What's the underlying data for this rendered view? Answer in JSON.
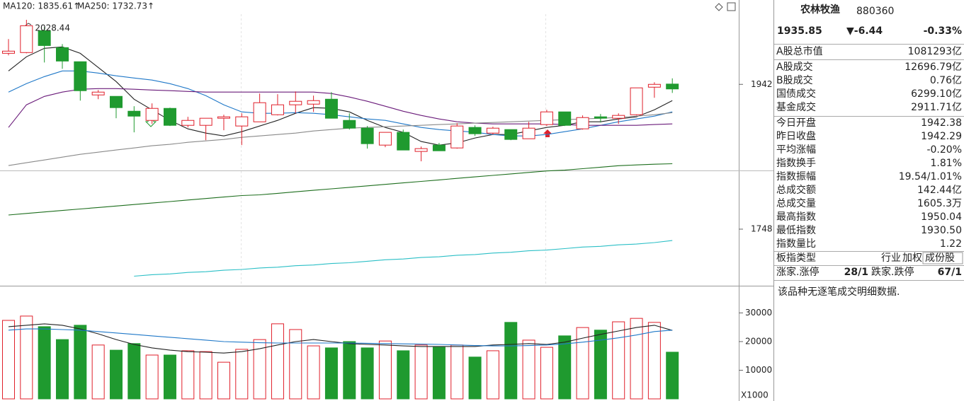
{
  "chart_data": [
    {
      "type": "candlestick",
      "up_color": "#e0202b",
      "down_color": "#1f9a2f",
      "open": [
        1983.6,
        1984.6,
        2013.9,
        1991.2,
        1972.3,
        1927.8,
        1925.9,
        1906.0,
        1893.7,
        1909.8,
        1887.1,
        1887.1,
        1896.6,
        1886.2,
        1891.8,
        1901.3,
        1914.6,
        1915.5,
        1922.1,
        1893.7,
        1883.3,
        1860.6,
        1877.7,
        1852.1,
        1860.6,
        1856.8,
        1884.3,
        1876.7,
        1881.4,
        1869.1,
        1888.1,
        1905.1,
        1882.4,
        1898.5,
        1896.6,
        1901.3,
        1938.2,
        1942.38
      ],
      "high": [
        2002.6,
        2028.44,
        2018.7,
        1995.9,
        1972.3,
        1934.4,
        1925.9,
        1912.7,
        1916.5,
        1910.8,
        1898.5,
        1896.6,
        1901.3,
        1903.2,
        1929.7,
        1928.8,
        1932.5,
        1926.9,
        1931.6,
        1903.2,
        1886.2,
        1877.7,
        1881.4,
        1858.7,
        1863.5,
        1890.0,
        1887.1,
        1885.2,
        1881.4,
        1891.8,
        1907.9,
        1905.1,
        1900.4,
        1902.3,
        1903.2,
        1937.3,
        1944.8,
        1950.04
      ],
      "low": [
        1980.8,
        1983.6,
        1971.3,
        1962.8,
        1920.2,
        1922.1,
        1896.6,
        1877.7,
        1889.0,
        1886.2,
        1884.3,
        1867.2,
        1880.5,
        1860.6,
        1891.8,
        1900.4,
        1903.2,
        1905.1,
        1896.6,
        1881.4,
        1855.9,
        1857.8,
        1854.0,
        1838.9,
        1853.0,
        1855.9,
        1872.9,
        1874.8,
        1867.2,
        1869.1,
        1886.2,
        1886.2,
        1881.4,
        1890.9,
        1889.0,
        1900.4,
        1924.0,
        1930.5
      ],
      "close": [
        1986.5,
        2020.5,
        1994.0,
        1973.2,
        1933.5,
        1931.6,
        1910.8,
        1899.4,
        1909.8,
        1887.1,
        1893.7,
        1896.6,
        1898.5,
        1898.5,
        1917.4,
        1914.6,
        1919.3,
        1920.2,
        1896.6,
        1883.3,
        1862.5,
        1877.7,
        1854.0,
        1855.9,
        1853.0,
        1886.2,
        1875.8,
        1883.3,
        1868.2,
        1883.3,
        1905.1,
        1887.1,
        1897.5,
        1896.6,
        1900.4,
        1937.3,
        1942.0,
        1935.85
      ],
      "series": [
        {
          "name": "MA120: 1835.61↑",
          "color": "#1d6e1d",
          "values": [
            1767,
            1769,
            1771,
            1773,
            1775,
            1777,
            1779,
            1781,
            1783,
            1785,
            1787,
            1789,
            1791,
            1793,
            1794,
            1796,
            1798,
            1800,
            1802,
            1804,
            1806,
            1808,
            1810,
            1812,
            1814,
            1816,
            1818,
            1820,
            1822,
            1824,
            1826,
            1827,
            1829,
            1831,
            1833,
            1834,
            1835,
            1835.61
          ]
        },
        {
          "name": "MA250: 1732.73↑",
          "color": "#2bbfc6",
          "values": [
            null,
            null,
            null,
            null,
            null,
            null,
            null,
            1685,
            1687,
            1688,
            1690,
            1691,
            1693,
            1694,
            1696,
            1697,
            1699,
            1700,
            1702,
            1703,
            1705,
            1707,
            1708,
            1710,
            1711,
            1713,
            1714,
            1716,
            1717,
            1719,
            1720,
            1722,
            1724,
            1725,
            1727,
            1728,
            1730,
            1732.73
          ]
        },
        {
          "color": "#222222",
          "values": [
            1960.0,
            1978.9,
            1990.3,
            1992.2,
            1983.6,
            1964.7,
            1945.8,
            1922.1,
            1907.9,
            1893.7,
            1882.4,
            1876.7,
            1872.9,
            1878.6,
            1886.2,
            1893.7,
            1903.2,
            1910.8,
            1909.8,
            1905.1,
            1893.7,
            1884.3,
            1877.7,
            1865.4,
            1860.6,
            1863.5,
            1870.1,
            1874.8,
            1874.8,
            1879.6,
            1884.3,
            1887.1,
            1891.8,
            1891.8,
            1895.6,
            1898.5,
            1907.9,
            1920.2
          ]
        },
        {
          "color": "#1f78c8",
          "values": [
            1931.6,
            1942.9,
            1952.4,
            1960.0,
            1960.0,
            1957.1,
            1953.4,
            1950.5,
            1947.7,
            1942.9,
            1936.3,
            1926.9,
            1914.6,
            1905.1,
            1903.2,
            1903.2,
            1904.1,
            1903.2,
            1901.3,
            1898.5,
            1895.6,
            1893.7,
            1889.0,
            1884.3,
            1881.4,
            1879.6,
            1877.7,
            1874.8,
            1872.9,
            1872.9,
            1874.8,
            1878.6,
            1882.4,
            1887.1,
            1891.8,
            1895.6,
            1899.4,
            1905.1
          ]
        },
        {
          "color": "#6a1b7a",
          "values": [
            1884.3,
            1914.6,
            1925.9,
            1931.6,
            1935.4,
            1936.3,
            1936.3,
            1935.4,
            1934.4,
            1933.5,
            1932.5,
            1931.6,
            1931.6,
            1931.6,
            1931.6,
            1931.6,
            1931.6,
            1931.6,
            1929.7,
            1925.0,
            1919.3,
            1912.7,
            1906.0,
            1900.4,
            1895.6,
            1891.8,
            1890.0,
            1889.0,
            1889.0,
            1889.0,
            1889.0,
            1888.1,
            1887.1,
            1887.1,
            1887.1,
            1887.1,
            1888.1,
            1889.0
          ]
        },
        {
          "color": "#8a8a8a",
          "values": [
            1833.2,
            1837.0,
            1840.7,
            1844.5,
            1848.3,
            1851.1,
            1854.0,
            1856.8,
            1859.7,
            1861.6,
            1864.4,
            1866.3,
            1868.2,
            1871.0,
            1872.9,
            1874.8,
            1876.7,
            1879.5,
            1881.4,
            1883.3,
            1884.3,
            1885.2,
            1886.2,
            1887.1,
            1888.1,
            1889.0,
            1890.0,
            1890.9,
            1891.8,
            1892.8,
            1893.7,
            1894.7,
            1895.6,
            1896.6,
            1897.5,
            1899.4,
            1901.3,
            1904.1
          ]
        }
      ],
      "ylim": [
        1676,
        2055
      ],
      "yticks": [
        1748,
        1942
      ]
    },
    {
      "type": "volume",
      "values": [
        27400,
        28900,
        25200,
        20700,
        25700,
        18800,
        17000,
        19300,
        15300,
        15300,
        16800,
        16500,
        12800,
        17300,
        20700,
        26200,
        24200,
        18500,
        17800,
        20000,
        17800,
        20200,
        16800,
        18800,
        18000,
        18800,
        14600,
        16800,
        26700,
        20500,
        18000,
        22000,
        24900,
        24000,
        26900,
        28100,
        26700,
        16300
      ],
      "series": [
        {
          "color": "#222222",
          "values": [
            25200,
            25700,
            26200,
            25700,
            24400,
            22700,
            20700,
            19000,
            17800,
            17000,
            16500,
            16300,
            16000,
            16500,
            17500,
            18800,
            20000,
            20700,
            20000,
            19300,
            19000,
            18800,
            18500,
            18300,
            18300,
            18300,
            18300,
            18800,
            19000,
            19300,
            19000,
            19800,
            21200,
            22500,
            23700,
            24900,
            25700,
            23900
          ]
        },
        {
          "color": "#1f78c8",
          "values": [
            24000,
            24400,
            24400,
            24200,
            24000,
            23500,
            23000,
            22500,
            22000,
            21500,
            21000,
            20500,
            20000,
            19800,
            19600,
            19500,
            19500,
            19500,
            19500,
            19500,
            19400,
            19300,
            19200,
            19100,
            19000,
            18800,
            18600,
            18500,
            18500,
            18600,
            18800,
            19200,
            19800,
            20500,
            21300,
            22300,
            23500,
            24000
          ]
        }
      ],
      "ylim": [
        0,
        39000
      ],
      "yticks": [
        10000,
        20000,
        30000
      ],
      "y_unit_label": "X1000"
    }
  ],
  "quote_panel": {
    "name": "农林牧渔",
    "code": "880360",
    "price": "1935.85",
    "change": "▼-6.44",
    "change_pct": "-0.33%",
    "quote_color": "#0a8a2a",
    "rows": [
      {
        "label": "A股总市值",
        "value": "1081293亿"
      },
      {
        "label": "A股成交",
        "value": "12696.79亿"
      },
      {
        "label": "B股成交",
        "value": "0.76亿"
      },
      {
        "label": "国债成交",
        "value": "6299.10亿"
      },
      {
        "label": "基金成交",
        "value": "2911.71亿"
      },
      {
        "label": "今日开盘",
        "value": "1942.38",
        "color": "#e0202b"
      },
      {
        "label": "昨日收盘",
        "value": "1942.29"
      },
      {
        "label": "平均涨幅",
        "value": "-0.20%",
        "color": "#0a8a2a"
      },
      {
        "label": "指数换手",
        "value": "1.81%"
      },
      {
        "label": "指数振幅",
        "value": "19.54/1.01%"
      },
      {
        "label": "总成交额",
        "value": "142.44亿"
      },
      {
        "label": "总成交量",
        "value": "1605.3万"
      },
      {
        "label": "最高指数",
        "value": "1950.04",
        "color": "#e0202b"
      },
      {
        "label": "最低指数",
        "value": "1930.50",
        "color": "#0a8a2a"
      },
      {
        "label": "指数量比",
        "value": "1.22",
        "color": "#e0202b"
      }
    ],
    "board_type": {
      "label": "板指类型",
      "options": [
        "行业",
        "加权",
        "成份股"
      ]
    },
    "breadth": {
      "up_label": "涨家.涨停",
      "up_value": "28/1",
      "up_color": "#e0202b",
      "down_label": "跌家.跌停",
      "down_value": "67/1",
      "down_color": "#0a8a2a"
    },
    "note": "该品种无逐笔成交明细数据."
  }
}
